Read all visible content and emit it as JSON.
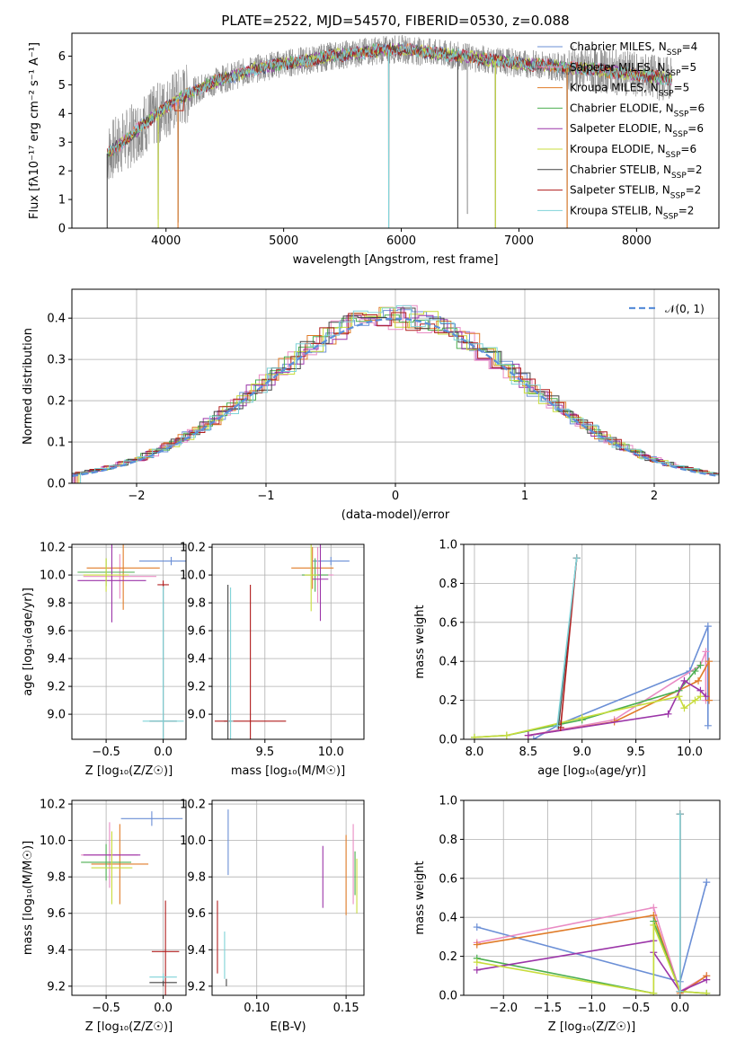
{
  "figure": {
    "title": "PLATE=2522, MJD=54570, FIBERID=0530, z=0.088"
  },
  "colors": {
    "chabrier_miles": "#6b8fd6",
    "salpeter_miles": "#e98bc4",
    "kroupa_miles": "#e07b28",
    "chabrier_elodie": "#4caf50",
    "salpeter_elodie": "#9b35a8",
    "kroupa_elodie": "#c8dc3c",
    "chabrier_stelib": "#444444",
    "salpeter_stelib": "#b01c1c",
    "kroupa_stelib": "#7fd3d8",
    "data": "#808080",
    "gaussian": "#5b8fd9"
  },
  "chart_data": [
    {
      "id": "spectrum",
      "type": "line",
      "title": "PLATE=2522, MJD=54570, FIBERID=0530, z=0.088",
      "xlabel": "wavelength [Angstrom, rest frame]",
      "ylabel": "Flux [fλ10⁻¹⁷ erg cm⁻² s⁻¹ A⁻¹]",
      "xlim": [
        3200,
        8700
      ],
      "ylim": [
        0,
        6.8
      ],
      "xticks": [
        "4000",
        "5000",
        "6000",
        "7000",
        "8000"
      ],
      "yticks": [
        "0",
        "1",
        "2",
        "3",
        "4",
        "5",
        "6"
      ],
      "grid": false,
      "legend_position": "right",
      "legend": [
        {
          "label": "Chabrier MILES, N",
          "sub": "SSP",
          "tail": "=4",
          "color_key": "chabrier_miles"
        },
        {
          "label": "Salpeter MILES, N",
          "sub": "SSP",
          "tail": "=5",
          "color_key": "salpeter_miles"
        },
        {
          "label": "Kroupa MILES, N",
          "sub": "SSP",
          "tail": "=5",
          "color_key": "kroupa_miles"
        },
        {
          "label": "Chabrier ELODIE, N",
          "sub": "SSP",
          "tail": "=6",
          "color_key": "chabrier_elodie"
        },
        {
          "label": "Salpeter ELODIE, N",
          "sub": "SSP",
          "tail": "=6",
          "color_key": "salpeter_elodie"
        },
        {
          "label": "Kroupa ELODIE, N",
          "sub": "SSP",
          "tail": "=6",
          "color_key": "kroupa_elodie"
        },
        {
          "label": "Chabrier STELIB, N",
          "sub": "SSP",
          "tail": "=2",
          "color_key": "chabrier_stelib"
        },
        {
          "label": "Salpeter STELIB, N",
          "sub": "SSP",
          "tail": "=2",
          "color_key": "salpeter_stelib"
        },
        {
          "label": "Kroupa STELIB, N",
          "sub": "SSP",
          "tail": "=2",
          "color_key": "kroupa_stelib"
        }
      ],
      "continuum": [
        [
          3500,
          2.6
        ],
        [
          3600,
          2.9
        ],
        [
          3700,
          3.2
        ],
        [
          3800,
          3.6
        ],
        [
          3900,
          3.9
        ],
        [
          4000,
          4.2
        ],
        [
          4100,
          4.5
        ],
        [
          4200,
          4.7
        ],
        [
          4400,
          5.1
        ],
        [
          4600,
          5.35
        ],
        [
          4800,
          5.6
        ],
        [
          5000,
          5.75
        ],
        [
          5200,
          5.85
        ],
        [
          5400,
          6.0
        ],
        [
          5600,
          6.1
        ],
        [
          5800,
          6.2
        ],
        [
          6000,
          6.25
        ],
        [
          6200,
          6.15
        ],
        [
          6400,
          6.05
        ],
        [
          6600,
          5.95
        ],
        [
          6800,
          5.85
        ],
        [
          7000,
          5.75
        ],
        [
          7200,
          5.7
        ],
        [
          7400,
          5.6
        ],
        [
          7600,
          5.55
        ],
        [
          7800,
          5.45
        ],
        [
          8000,
          5.35
        ],
        [
          8200,
          5.25
        ],
        [
          8300,
          5.2
        ]
      ],
      "dips": [
        [
          4102,
          0.2
        ],
        [
          3934,
          0.3
        ],
        [
          5893,
          0.0
        ],
        [
          6563,
          0.5
        ],
        [
          6800,
          0.0
        ],
        [
          7410,
          0.0
        ]
      ]
    },
    {
      "id": "residuals",
      "type": "histogram",
      "xlabel": "(data-model)/error",
      "ylabel": "Normed distribution",
      "xlim": [
        -2.5,
        2.5
      ],
      "ylim": [
        0,
        0.47
      ],
      "xticks": [
        "−2",
        "−1",
        "0",
        "1",
        "2"
      ],
      "yticks": [
        "0.0",
        "0.1",
        "0.2",
        "0.3",
        "0.4"
      ],
      "grid": true,
      "legend_position": "top-right",
      "legend": [
        "𝒩(0, 1)"
      ],
      "gaussian": {
        "mu": 0,
        "sigma": 1
      }
    },
    {
      "id": "age-vs-Z",
      "type": "errorbar",
      "xlabel": "Z [log₁₀(Z/Z☉)]",
      "ylabel": "age  [log₁₀(age/yr)]",
      "xlim": [
        -0.8,
        0.2
      ],
      "ylim": [
        8.82,
        10.22
      ],
      "xticks": [
        "−0.5",
        "0.0"
      ],
      "yticks": [
        "9.0",
        "9.2",
        "9.4",
        "9.6",
        "9.8",
        "10.0",
        "10.2"
      ],
      "grid": true,
      "points": [
        {
          "color_key": "chabrier_miles",
          "x": 0.07,
          "xerr": 0.28,
          "y": 10.1,
          "yerr": 0.03
        },
        {
          "color_key": "salpeter_miles",
          "x": -0.38,
          "xerr": 0.32,
          "y": 9.99,
          "yerr": 0.16
        },
        {
          "color_key": "kroupa_miles",
          "x": -0.35,
          "xerr": 0.32,
          "y": 10.05,
          "yerr": 0.3
        },
        {
          "color_key": "chabrier_elodie",
          "x": -0.5,
          "xerr": 0.25,
          "y": 10.02,
          "yerr": 0.1
        },
        {
          "color_key": "salpeter_elodie",
          "x": -0.45,
          "xerr": 0.3,
          "y": 9.96,
          "yerr": 0.3
        },
        {
          "color_key": "kroupa_elodie",
          "x": -0.5,
          "xerr": 0.2,
          "y": 10.0,
          "yerr": 0.12
        },
        {
          "color_key": "chabrier_stelib",
          "x": 0.0,
          "xerr": 0.12,
          "y": 8.95,
          "yerr": 0.98
        },
        {
          "color_key": "salpeter_stelib",
          "x": 0.0,
          "xerr": 0.05,
          "y": 9.93,
          "yerr": 0.03
        },
        {
          "color_key": "kroupa_stelib",
          "x": 0.0,
          "xerr": 0.18,
          "y": 8.95,
          "yerr": 0.97
        }
      ]
    },
    {
      "id": "age-vs-mass",
      "type": "errorbar",
      "xlabel": "mass [log₁₀(M/M☉)]",
      "ylabel": "",
      "xlim": [
        9.1,
        10.25
      ],
      "ylim": [
        8.82,
        10.22
      ],
      "xticks": [
        "9.5",
        "10.0"
      ],
      "yticks": [
        "9.0",
        "9.2",
        "9.4",
        "9.6",
        "9.8",
        "10.0",
        "10.2"
      ],
      "grid": true,
      "points": [
        {
          "color_key": "chabrier_miles",
          "x": 10.0,
          "xerr": 0.14,
          "y": 10.1,
          "yerr": 0.03
        },
        {
          "color_key": "salpeter_miles",
          "x": 9.9,
          "xerr": 0.12,
          "y": 10.0,
          "yerr": 0.2
        },
        {
          "color_key": "kroupa_miles",
          "x": 9.86,
          "xerr": 0.16,
          "y": 10.05,
          "yerr": 0.15
        },
        {
          "color_key": "chabrier_elodie",
          "x": 9.88,
          "xerr": 0.1,
          "y": 10.0,
          "yerr": 0.12
        },
        {
          "color_key": "salpeter_elodie",
          "x": 9.92,
          "xerr": 0.06,
          "y": 9.97,
          "yerr": 0.3
        },
        {
          "color_key": "kroupa_elodie",
          "x": 9.85,
          "xerr": 0.05,
          "y": 10.0,
          "yerr": 0.26
        },
        {
          "color_key": "chabrier_stelib",
          "x": 9.22,
          "xerr": 0.03,
          "y": 8.95,
          "yerr": 0.98
        },
        {
          "color_key": "salpeter_stelib",
          "x": 9.39,
          "xerr": 0.27,
          "y": 8.95,
          "yerr": 0.98
        },
        {
          "color_key": "kroupa_stelib",
          "x": 9.24,
          "xerr": 0.02,
          "y": 8.95,
          "yerr": 0.96
        }
      ]
    },
    {
      "id": "weight-vs-age",
      "type": "line",
      "xlabel": "age  [log₁₀(age/yr)]",
      "ylabel": "mass weight",
      "xlim": [
        7.9,
        10.28
      ],
      "ylim": [
        0,
        1.0
      ],
      "xticks": [
        "8.0",
        "8.5",
        "9.0",
        "9.5",
        "10.0"
      ],
      "yticks": [
        "0.0",
        "0.2",
        "0.4",
        "0.6",
        "0.8",
        "1.0"
      ],
      "grid": true,
      "series": [
        {
          "color_key": "chabrier_miles",
          "x": [
            8.55,
            8.8,
            10.0,
            10.17,
            10.17
          ],
          "y": [
            0.0,
            0.08,
            0.35,
            0.58,
            0.07
          ]
        },
        {
          "color_key": "salpeter_miles",
          "x": [
            8.5,
            9.3,
            10.1,
            10.15,
            10.15
          ],
          "y": [
            0.02,
            0.1,
            0.38,
            0.45,
            0.2
          ]
        },
        {
          "color_key": "kroupa_miles",
          "x": [
            8.5,
            9.3,
            10.08,
            10.18,
            10.18
          ],
          "y": [
            0.02,
            0.09,
            0.3,
            0.4,
            0.2
          ]
        },
        {
          "color_key": "chabrier_elodie",
          "x": [
            8.0,
            8.3,
            9.0,
            9.9,
            10.05,
            10.1
          ],
          "y": [
            0.01,
            0.02,
            0.1,
            0.25,
            0.35,
            0.38
          ]
        },
        {
          "color_key": "salpeter_elodie",
          "x": [
            8.5,
            9.8,
            9.95,
            10.1,
            10.15
          ],
          "y": [
            0.02,
            0.13,
            0.3,
            0.25,
            0.22
          ]
        },
        {
          "color_key": "kroupa_elodie",
          "x": [
            8.0,
            8.3,
            9.0,
            9.9,
            9.95,
            10.05,
            10.1
          ],
          "y": [
            0.01,
            0.02,
            0.11,
            0.22,
            0.16,
            0.2,
            0.22
          ]
        },
        {
          "color_key": "chabrier_stelib",
          "x": [
            8.78,
            8.95
          ],
          "y": [
            0.07,
            0.93
          ]
        },
        {
          "color_key": "salpeter_stelib",
          "x": [
            8.8,
            8.95
          ],
          "y": [
            0.06,
            0.93
          ]
        },
        {
          "color_key": "kroupa_stelib",
          "x": [
            8.77,
            8.95
          ],
          "y": [
            0.07,
            0.93
          ]
        }
      ]
    },
    {
      "id": "mass-vs-Z",
      "type": "errorbar",
      "xlabel": "Z [log₁₀(Z/Z☉)]",
      "ylabel": "mass [log₁₀(M/M☉)]",
      "xlim": [
        -0.8,
        0.2
      ],
      "ylim": [
        9.15,
        10.22
      ],
      "xticks": [
        "−0.5",
        "0.0"
      ],
      "yticks": [
        "9.2",
        "9.4",
        "9.6",
        "9.8",
        "10.0",
        "10.2"
      ],
      "grid": true,
      "points": [
        {
          "color_key": "chabrier_miles",
          "x": -0.1,
          "xerr": 0.27,
          "y": 10.12,
          "yerr": 0.04
        },
        {
          "color_key": "salpeter_miles",
          "x": -0.47,
          "xerr": 0.25,
          "y": 9.92,
          "yerr": 0.18
        },
        {
          "color_key": "kroupa_miles",
          "x": -0.38,
          "xerr": 0.25,
          "y": 9.87,
          "yerr": 0.22
        },
        {
          "color_key": "chabrier_elodie",
          "x": -0.5,
          "xerr": 0.22,
          "y": 9.88,
          "yerr": 0.1
        },
        {
          "color_key": "salpeter_elodie",
          "x": -0.45,
          "xerr": 0.25,
          "y": 9.92,
          "yerr": 0.03
        },
        {
          "color_key": "kroupa_elodie",
          "x": -0.45,
          "xerr": 0.18,
          "y": 9.85,
          "yerr": 0.2
        },
        {
          "color_key": "chabrier_stelib",
          "x": 0.0,
          "xerr": 0.12,
          "y": 9.22,
          "yerr": 0.02
        },
        {
          "color_key": "salpeter_stelib",
          "x": 0.02,
          "xerr": 0.12,
          "y": 9.39,
          "yerr": 0.28
        },
        {
          "color_key": "kroupa_stelib",
          "x": 0.0,
          "xerr": 0.12,
          "y": 9.25,
          "yerr": 0.02
        }
      ]
    },
    {
      "id": "mass-vs-EBV",
      "type": "errorbar",
      "xlabel": "E(B-V)",
      "ylabel": "",
      "xlim": [
        0.075,
        0.16
      ],
      "ylim": [
        9.15,
        10.22
      ],
      "xticks": [
        "0.10",
        "0.15"
      ],
      "yticks": [
        "9.2",
        "9.4",
        "9.6",
        "9.8",
        "10.0",
        "10.2"
      ],
      "grid": true,
      "points": [
        {
          "color_key": "chabrier_miles",
          "x": 0.084,
          "xerr": 0,
          "y": 9.99,
          "yerr": 0.18
        },
        {
          "color_key": "salpeter_miles",
          "x": 0.154,
          "xerr": 0,
          "y": 9.87,
          "yerr": 0.22
        },
        {
          "color_key": "kroupa_miles",
          "x": 0.15,
          "xerr": 0,
          "y": 9.81,
          "yerr": 0.22
        },
        {
          "color_key": "chabrier_elodie",
          "x": 0.155,
          "xerr": 0,
          "y": 9.82,
          "yerr": 0.12
        },
        {
          "color_key": "salpeter_elodie",
          "x": 0.137,
          "xerr": 0,
          "y": 9.8,
          "yerr": 0.17
        },
        {
          "color_key": "kroupa_elodie",
          "x": 0.156,
          "xerr": 0,
          "y": 9.75,
          "yerr": 0.15
        },
        {
          "color_key": "chabrier_stelib",
          "x": 0.083,
          "xerr": 0,
          "y": 9.22,
          "yerr": 0.02
        },
        {
          "color_key": "salpeter_stelib",
          "x": 0.078,
          "xerr": 0,
          "y": 9.47,
          "yerr": 0.2
        },
        {
          "color_key": "kroupa_stelib",
          "x": 0.082,
          "xerr": 0,
          "y": 9.37,
          "yerr": 0.13
        }
      ]
    },
    {
      "id": "weight-vs-Z",
      "type": "line",
      "xlabel": "Z [log₁₀(Z/Z☉)]",
      "ylabel": "mass weight",
      "xlim": [
        -2.45,
        0.45
      ],
      "ylim": [
        0,
        1.0
      ],
      "xticks": [
        "−2.0",
        "−1.5",
        "−1.0",
        "−0.5",
        "0.0"
      ],
      "yticks": [
        "0.0",
        "0.2",
        "0.4",
        "0.6",
        "0.8",
        "1.0"
      ],
      "grid": true,
      "series": [
        {
          "color_key": "chabrier_miles",
          "x": [
            -2.3,
            0.0,
            0.3
          ],
          "y": [
            0.35,
            0.07,
            0.58
          ]
        },
        {
          "color_key": "salpeter_miles",
          "x": [
            -2.3,
            -0.3,
            0.0,
            0.3
          ],
          "y": [
            0.27,
            0.45,
            0.02,
            0.1
          ]
        },
        {
          "color_key": "kroupa_miles",
          "x": [
            -2.3,
            -0.3,
            0.0,
            0.3
          ],
          "y": [
            0.26,
            0.41,
            0.01,
            0.1
          ]
        },
        {
          "color_key": "chabrier_elodie",
          "x": [
            -2.3,
            -0.3,
            -0.3,
            0.0,
            0.3
          ],
          "y": [
            0.19,
            0.01,
            0.38,
            0.02,
            0.01
          ]
        },
        {
          "color_key": "salpeter_elodie",
          "x": [
            -2.3,
            -0.3,
            -0.3,
            0.0,
            0.3
          ],
          "y": [
            0.13,
            0.28,
            0.22,
            0.02,
            0.08
          ]
        },
        {
          "color_key": "kroupa_elodie",
          "x": [
            -2.3,
            -0.3,
            -0.3,
            0.0,
            0.3
          ],
          "y": [
            0.17,
            0.01,
            0.36,
            0.02,
            0.01
          ]
        },
        {
          "color_key": "chabrier_stelib",
          "x": [
            0.0,
            0.0
          ],
          "y": [
            0.02,
            0.93
          ]
        },
        {
          "color_key": "salpeter_stelib",
          "x": [
            0.0,
            0.0
          ],
          "y": [
            0.02,
            0.93
          ]
        },
        {
          "color_key": "kroupa_stelib",
          "x": [
            0.0,
            0.0
          ],
          "y": [
            0.02,
            0.93
          ]
        }
      ]
    }
  ]
}
